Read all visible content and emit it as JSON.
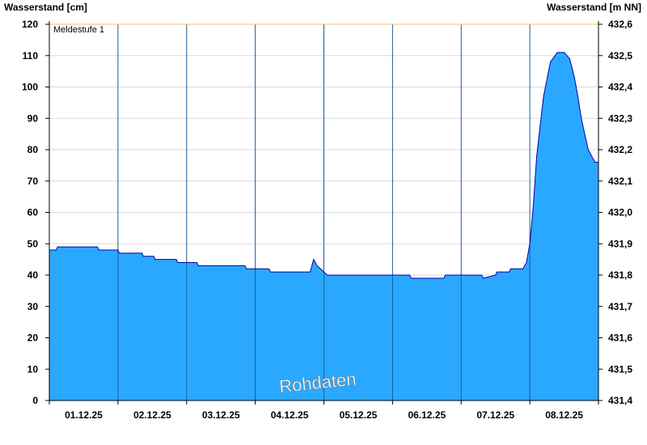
{
  "chart_data": {
    "type": "area",
    "left_axis_title": "Wasserstand [cm]",
    "right_axis_title": "Wasserstand [m NN]",
    "ylim": [
      0,
      120
    ],
    "yticks": [
      0,
      10,
      20,
      30,
      40,
      50,
      60,
      70,
      80,
      90,
      100,
      110,
      120
    ],
    "right_ticks": [
      "431,4",
      "431,5",
      "431,6",
      "431,7",
      "431,8",
      "431,9",
      "432,0",
      "432,1",
      "432,2",
      "432,3",
      "432,4",
      "432,5",
      "432,6"
    ],
    "x_range_days": [
      0,
      8
    ],
    "day_labels": [
      "01.12.25",
      "02.12.25",
      "03.12.25",
      "04.12.25",
      "05.12.25",
      "06.12.25",
      "07.12.25",
      "08.12.25"
    ],
    "reference_line": {
      "label": "Meldestufe 1",
      "value": 120,
      "color": "#f0c060"
    },
    "watermark": "Rohdaten",
    "fill_color": "#2aa8ff",
    "line_color": "#0000aa",
    "grid": true,
    "series": [
      {
        "x": [
          0,
          0.1,
          0.12,
          0.7,
          0.72,
          1.0,
          1.02,
          1.35,
          1.37,
          1.52,
          1.54,
          1.85,
          1.87,
          2.15,
          2.17,
          2.85,
          2.87,
          3.2,
          3.22,
          3.75,
          3.8,
          3.85,
          3.9,
          3.95,
          4.0,
          4.05,
          4.1,
          4.15,
          4.2,
          4.8,
          5.0,
          5.25,
          5.27,
          5.75,
          5.77,
          6.3,
          6.32,
          6.5,
          6.52,
          6.7,
          6.72,
          6.9,
          6.95,
          7.0,
          7.05,
          7.1,
          7.2,
          7.3,
          7.4,
          7.5,
          7.58,
          7.65,
          7.7,
          7.75,
          7.8,
          7.85,
          7.9,
          7.95,
          8.0
        ],
        "y": [
          48,
          48,
          49,
          49,
          48,
          48,
          47,
          47,
          46,
          46,
          45,
          45,
          44,
          44,
          43,
          43,
          42,
          42,
          41,
          41,
          41,
          45,
          43,
          42,
          41,
          40,
          40,
          40,
          40,
          40,
          40,
          40,
          39,
          39,
          40,
          40,
          39,
          40,
          41,
          41,
          42,
          42,
          44,
          50,
          62,
          78,
          97,
          108,
          111,
          111,
          109,
          103,
          97,
          90,
          85,
          80,
          78,
          76,
          76
        ]
      }
    ]
  }
}
